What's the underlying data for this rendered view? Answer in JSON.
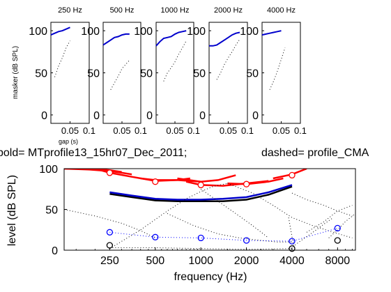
{
  "chart_data": [
    {
      "type": "line",
      "panel": "250 Hz",
      "title": "250 Hz",
      "ylabel": "masker (dB SPL)",
      "xlabel": "gap (s)",
      "xlim": [
        0,
        0.1
      ],
      "ylim": [
        -10,
        110
      ],
      "yticks": [
        0,
        50,
        100
      ],
      "xticks": [
        {
          "v": 0.05,
          "label": "0.05"
        },
        {
          "v": 0.1,
          "label": "0.1"
        }
      ],
      "series": [
        {
          "style": "solid",
          "color": "#0000cc",
          "x": [
            0.0,
            0.01,
            0.02,
            0.03,
            0.04,
            0.05
          ],
          "y": [
            95,
            97,
            99,
            100,
            102,
            104
          ]
        },
        {
          "style": "dotted",
          "color": "#000000",
          "x": [
            0.01,
            0.02,
            0.03,
            0.04,
            0.05
          ],
          "y": [
            45,
            58,
            68,
            80,
            88
          ]
        }
      ]
    },
    {
      "type": "line",
      "panel": "500 Hz",
      "title": "500 Hz",
      "ylabel": "",
      "xlabel": "",
      "xlim": [
        0,
        0.1
      ],
      "ylim": [
        -10,
        110
      ],
      "yticks": [
        0,
        50,
        100
      ],
      "xticks": [
        {
          "v": 0.05,
          "label": "0.05"
        },
        {
          "v": 0.1,
          "label": "0.1"
        }
      ],
      "series": [
        {
          "style": "solid",
          "color": "#0000cc",
          "x": [
            0.0,
            0.01,
            0.02,
            0.03,
            0.04,
            0.05,
            0.06,
            0.07
          ],
          "y": [
            83,
            86,
            89,
            92,
            93,
            95,
            96,
            96
          ]
        },
        {
          "style": "dotted",
          "color": "#000000",
          "x": [
            0.02,
            0.03,
            0.04,
            0.05,
            0.06,
            0.07
          ],
          "y": [
            30,
            38,
            46,
            55,
            60,
            65
          ]
        }
      ]
    },
    {
      "type": "line",
      "panel": "1000 Hz",
      "title": "1000 Hz",
      "ylabel": "",
      "xlabel": "",
      "xlim": [
        0,
        0.1
      ],
      "ylim": [
        -10,
        110
      ],
      "yticks": [
        0,
        50,
        100
      ],
      "xticks": [
        {
          "v": 0.05,
          "label": "0.05"
        },
        {
          "v": 0.1,
          "label": "0.1"
        }
      ],
      "series": [
        {
          "style": "solid",
          "color": "#0000cc",
          "x": [
            0.0,
            0.01,
            0.02,
            0.03,
            0.04,
            0.05,
            0.06,
            0.07,
            0.08
          ],
          "y": [
            82,
            87,
            91,
            92,
            93,
            96,
            98,
            99,
            100
          ]
        },
        {
          "style": "dotted",
          "color": "#000000",
          "x": [
            0.02,
            0.03,
            0.04,
            0.05,
            0.06,
            0.07,
            0.08
          ],
          "y": [
            40,
            50,
            56,
            63,
            72,
            80,
            88
          ]
        }
      ]
    },
    {
      "type": "line",
      "panel": "2000 Hz",
      "title": "2000 Hz",
      "ylabel": "",
      "xlabel": "",
      "xlim": [
        0,
        0.1
      ],
      "ylim": [
        -10,
        110
      ],
      "yticks": [
        0,
        50,
        100
      ],
      "xticks": [
        {
          "v": 0.05,
          "label": "0.05"
        },
        {
          "v": 0.1,
          "label": "0.1"
        }
      ],
      "series": [
        {
          "style": "solid",
          "color": "#0000cc",
          "x": [
            0.0,
            0.01,
            0.02,
            0.03,
            0.04,
            0.05,
            0.06,
            0.07,
            0.08
          ],
          "y": [
            82,
            82,
            83,
            86,
            89,
            92,
            95,
            97,
            98
          ]
        },
        {
          "style": "dotted",
          "color": "#000000",
          "x": [
            0.02,
            0.03,
            0.04,
            0.05,
            0.06,
            0.07,
            0.08
          ],
          "y": [
            42,
            50,
            60,
            68,
            75,
            83,
            90
          ]
        }
      ]
    },
    {
      "type": "line",
      "panel": "4000 Hz",
      "title": "4000 Hz",
      "ylabel": "",
      "xlabel": "",
      "xlim": [
        0,
        0.1
      ],
      "ylim": [
        -10,
        110
      ],
      "yticks": [
        0,
        50,
        100
      ],
      "xticks": [
        {
          "v": 0.05,
          "label": "0.05"
        },
        {
          "v": 0.1,
          "label": "0.1"
        }
      ],
      "series": [
        {
          "style": "solid",
          "color": "#0000cc",
          "x": [
            0.0,
            0.01,
            0.02,
            0.03,
            0.04,
            0.05
          ],
          "y": [
            95,
            96,
            97,
            98,
            99,
            100
          ]
        },
        {
          "style": "dotted",
          "color": "#000000",
          "x": [
            0.02,
            0.03,
            0.04,
            0.05,
            0.06
          ],
          "y": [
            30,
            40,
            52,
            66,
            80
          ]
        }
      ]
    },
    {
      "type": "line",
      "panel": "profile",
      "title_left": "bold= MTprofile13_15hr07_Dec_2011;",
      "title_right": "dashed=  profile_CMA",
      "ylabel": "level (dB SPL)",
      "xlabel": "frequency (Hz)",
      "xscale": "log",
      "xlim": [
        125,
        10500
      ],
      "ylim": [
        0,
        100
      ],
      "yticks": [
        0,
        50,
        100
      ],
      "xticks": [
        250,
        500,
        1000,
        2000,
        4000,
        8000
      ],
      "series": [
        {
          "style": "solid",
          "color": "#ff0000",
          "x": [
            125,
            150,
            200,
            250,
            300
          ],
          "y": [
            100,
            100,
            100,
            98,
            96
          ]
        },
        {
          "style": "solid",
          "color": "#ff0000",
          "x": [
            125,
            180,
            250,
            300,
            350
          ],
          "y": [
            100,
            99,
            97,
            95,
            93
          ]
        },
        {
          "style": "solid",
          "color": "#ff0000",
          "x": [
            200,
            250,
            350,
            500,
            700,
            850
          ],
          "y": [
            100,
            95,
            90,
            85,
            86,
            88
          ]
        },
        {
          "style": "solid",
          "color": "#ff0000",
          "x": [
            400,
            500,
            700,
            1000
          ],
          "y": [
            88,
            86,
            86,
            84
          ]
        },
        {
          "style": "solid",
          "color": "#ff0000",
          "x": [
            700,
            1000,
            1300,
            1700
          ],
          "y": [
            88,
            84,
            86,
            92
          ]
        },
        {
          "style": "solid",
          "color": "#ff0000",
          "x": [
            800,
            1000,
            1400,
            2000,
            2800
          ],
          "y": [
            84,
            80,
            79,
            82,
            85
          ]
        },
        {
          "style": "solid",
          "color": "#ff0000",
          "x": [
            1500,
            2000,
            2800,
            3500
          ],
          "y": [
            82,
            81,
            84,
            88
          ]
        },
        {
          "style": "solid",
          "color": "#ff0000",
          "x": [
            3000,
            4000,
            5000
          ],
          "y": [
            88,
            93,
            100
          ]
        },
        {
          "style": "solid",
          "color": "#000000",
          "x": [
            250,
            350,
            500,
            700,
            1000,
            1400,
            2000,
            2800,
            4000
          ],
          "y": [
            69,
            65,
            61,
            60,
            60,
            60,
            62,
            68,
            78
          ]
        },
        {
          "style": "solid",
          "color": "#0000cc",
          "x": [
            250,
            350,
            500,
            700,
            1000,
            1400,
            2000,
            2800,
            4000
          ],
          "y": [
            71,
            67,
            63,
            62,
            62,
            63,
            65,
            71,
            80
          ]
        },
        {
          "style": "dotted",
          "color": "#000000",
          "x": [
            125,
            200,
            300,
            400,
            500
          ],
          "y": [
            50,
            42,
            33,
            24,
            15
          ]
        },
        {
          "style": "dotted",
          "color": "#000000",
          "x": [
            250,
            400,
            600,
            800,
            1000,
            1200,
            1500
          ],
          "y": [
            2,
            25,
            48,
            63,
            72,
            78,
            82
          ]
        },
        {
          "style": "dotted",
          "color": "#000000",
          "x": [
            1000,
            1300,
            1700,
            2200,
            2800
          ],
          "y": [
            75,
            60,
            45,
            30,
            15
          ]
        },
        {
          "style": "dotted",
          "color": "#000000",
          "x": [
            600,
            900,
            1300,
            1800,
            2500,
            3200,
            4000
          ],
          "y": [
            45,
            30,
            20,
            15,
            12,
            10,
            10
          ]
        },
        {
          "style": "dotted",
          "color": "#000000",
          "x": [
            1500,
            2200,
            3000,
            4000,
            5500,
            7500,
            10000
          ],
          "y": [
            82,
            70,
            55,
            40,
            30,
            22,
            15
          ]
        },
        {
          "style": "dotted",
          "color": "#000000",
          "x": [
            4000,
            5000,
            6500,
            8000,
            10000
          ],
          "y": [
            70,
            62,
            55,
            48,
            42
          ]
        },
        {
          "style": "dotted",
          "color": "#000000",
          "x": [
            3800,
            4100,
            4600,
            5500,
            6500,
            7500
          ],
          "y": [
            40,
            5,
            12,
            22,
            32,
            40
          ]
        },
        {
          "style": "dotted",
          "color": "#000000",
          "x": [
            5000,
            6500,
            8000,
            10000
          ],
          "y": [
            22,
            35,
            48,
            55
          ]
        },
        {
          "style": "dotted",
          "color": "#000000",
          "x": [
            7000,
            8000,
            9000,
            10500
          ],
          "y": [
            15,
            25,
            35,
            45
          ]
        },
        {
          "style": "dotted",
          "color": "#000000",
          "x": [
            250,
            500,
            1000,
            2000,
            4000
          ],
          "y": [
            3,
            3,
            2,
            1,
            2
          ]
        },
        {
          "style": "dotted",
          "color": "#0000ff",
          "x": [
            250,
            500,
            1000,
            2000,
            4000,
            8000
          ],
          "y": [
            22,
            16,
            15,
            12,
            11,
            27
          ]
        }
      ],
      "markers": [
        {
          "color": "#ff0000",
          "fill": "#ffffff",
          "x": [
            250,
            500,
            1000,
            2000,
            4000
          ],
          "y": [
            95,
            84,
            80,
            81,
            92
          ]
        },
        {
          "color": "#0000ff",
          "fill": "none",
          "x": [
            250,
            500,
            1000,
            2000,
            4000,
            8000
          ],
          "y": [
            22,
            16,
            15,
            12,
            11,
            27
          ]
        },
        {
          "color": "#000000",
          "fill": "none",
          "x": [
            250,
            4000,
            8000
          ],
          "y": [
            6,
            2,
            12
          ]
        }
      ]
    }
  ]
}
